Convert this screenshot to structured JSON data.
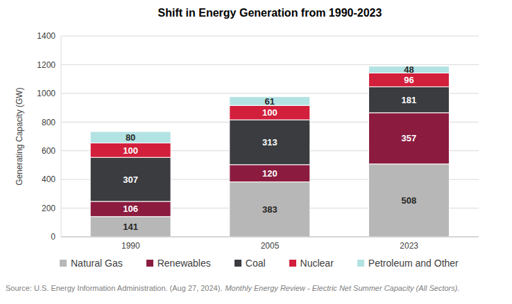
{
  "chart_data": {
    "type": "bar",
    "title": "Shift in Energy Generation from 1990-2023",
    "ylabel": "Generating Capacity (GW)",
    "annotations": [
      "Source: U.S. Energy Information Administration. (Aug 27, 2024).",
      "Monthly Energy Review - Electric Net Summer Capacity (All Sectors)."
    ],
    "categories": [
      "1990",
      "2005",
      "2023"
    ],
    "series": [
      {
        "name": "Natural Gas",
        "color": "#b7b7b7",
        "values": [
          141,
          383,
          508
        ]
      },
      {
        "name": "Renewables",
        "color": "#8b1c3f",
        "values": [
          106,
          120,
          357
        ]
      },
      {
        "name": "Coal",
        "color": "#3a3c3f",
        "values": [
          307,
          313,
          181
        ]
      },
      {
        "name": "Nuclear",
        "color": "#d21f3c",
        "values": [
          100,
          100,
          96
        ]
      },
      {
        "name": "Petroleum and Other",
        "color": "#b3e2e3",
        "values": [
          80,
          61,
          48
        ]
      }
    ],
    "ylim": [
      0,
      1400
    ],
    "yticks": [
      0,
      200,
      400,
      600,
      800,
      1000,
      1200,
      1400
    ],
    "grid": true,
    "stacked": true,
    "data_labels": true,
    "legend": "bottom"
  }
}
